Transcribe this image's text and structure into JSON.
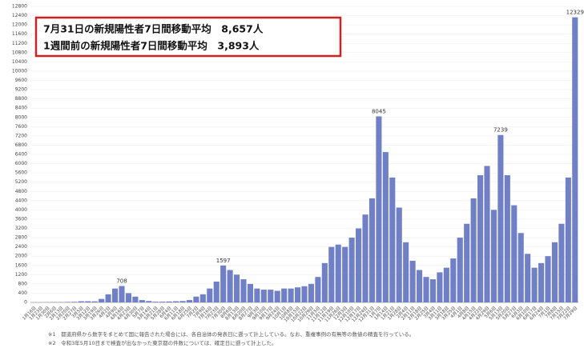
{
  "chart_data": {
    "type": "bar",
    "annotations": [
      "7月31日の新規陽性者7日間移動平均　8,657人",
      "1週間前の新規陽性者7日間移動平均　3,893人"
    ],
    "notes": [
      "※1　都道府県から数字をまとめて国に報告された場合には、各自治体の発表日に遡って計上している。なお、重複事例の有無等の数値の精査を行っている。",
      "※2　令和3年5月10日まで検査が出なかった東京都の件数については、確定日に遡って計上した。"
    ],
    "categories": [
      "1月16日",
      "1月23日",
      "1月30日",
      "2月6日",
      "2月13日",
      "2月20日",
      "2月27日",
      "3月5日",
      "3月12日",
      "3月19日",
      "3月26日",
      "4月2日",
      "4月9日",
      "4月16日",
      "4月23日",
      "4月30日",
      "5月7日",
      "5月14日",
      "5月21日",
      "5月28日",
      "6月4日",
      "6月11日",
      "6月18日",
      "6月25日",
      "7月2日",
      "7月9日",
      "7月16日",
      "7月23日",
      "7月30日",
      "8月6日",
      "8月13日",
      "8月20日",
      "8月27日",
      "9月3日",
      "9月10日",
      "9月17日",
      "9月24日",
      "10月1日",
      "10月8日",
      "10月15日",
      "10月22日",
      "10月29日",
      "11月5日",
      "11月12日",
      "11月19日",
      "11月26日",
      "12月3日",
      "12月10日",
      "12月17日",
      "12月24日",
      "12月31日",
      "1月7日",
      "1月14日",
      "1月21日",
      "1月28日",
      "2月4日",
      "2月11日",
      "2月18日",
      "2月25日",
      "3月4日",
      "3月11日",
      "3月18日",
      "3月25日",
      "4月1日",
      "4月8日",
      "4月15日",
      "4月22日",
      "4月29日",
      "5月6日",
      "5月13日",
      "5月20日",
      "5月27日",
      "6月3日",
      "6月10日",
      "6月17日",
      "6月24日",
      "7月1日",
      "7月8日",
      "7月15日",
      "7月22日",
      "7月29日"
    ],
    "values": [
      0,
      0,
      5,
      10,
      10,
      20,
      25,
      50,
      50,
      45,
      150,
      350,
      600,
      708,
      400,
      250,
      100,
      60,
      30,
      30,
      40,
      50,
      60,
      100,
      250,
      350,
      600,
      900,
      1597,
      1400,
      1200,
      1000,
      800,
      600,
      550,
      550,
      500,
      600,
      600,
      650,
      700,
      800,
      1100,
      1700,
      2400,
      2500,
      2400,
      2800,
      3200,
      3800,
      4500,
      8045,
      6500,
      5400,
      4100,
      2600,
      1800,
      1400,
      1100,
      1000,
      1300,
      1500,
      1900,
      2800,
      3400,
      4500,
      5500,
      5900,
      4000,
      7239,
      5500,
      4200,
      3000,
      2100,
      1500,
      1700,
      2000,
      2600,
      3400,
      5400,
      12329
    ],
    "value_labels": [
      null,
      null,
      null,
      null,
      null,
      null,
      null,
      null,
      null,
      null,
      null,
      null,
      null,
      "708",
      null,
      null,
      null,
      null,
      null,
      null,
      null,
      null,
      null,
      null,
      null,
      null,
      null,
      null,
      "1597",
      null,
      null,
      null,
      null,
      null,
      null,
      null,
      null,
      null,
      null,
      null,
      null,
      null,
      null,
      null,
      null,
      null,
      null,
      null,
      null,
      null,
      null,
      "8045",
      null,
      null,
      null,
      null,
      null,
      null,
      null,
      null,
      null,
      null,
      null,
      null,
      null,
      null,
      null,
      null,
      null,
      "7239",
      null,
      null,
      null,
      null,
      null,
      null,
      null,
      null,
      null,
      null,
      "12329"
    ],
    "color": "#6f80c8",
    "ylim": [
      0,
      12800
    ],
    "yticks": [
      0,
      400,
      800,
      1200,
      1600,
      2000,
      2400,
      2800,
      3200,
      3600,
      4000,
      4400,
      4800,
      5200,
      5600,
      6000,
      6400,
      6800,
      7200,
      7600,
      8000,
      8400,
      8800,
      9200,
      9600,
      10000,
      10400,
      10800,
      11200,
      11600,
      12000,
      12400,
      12800
    ],
    "grid": true
  }
}
